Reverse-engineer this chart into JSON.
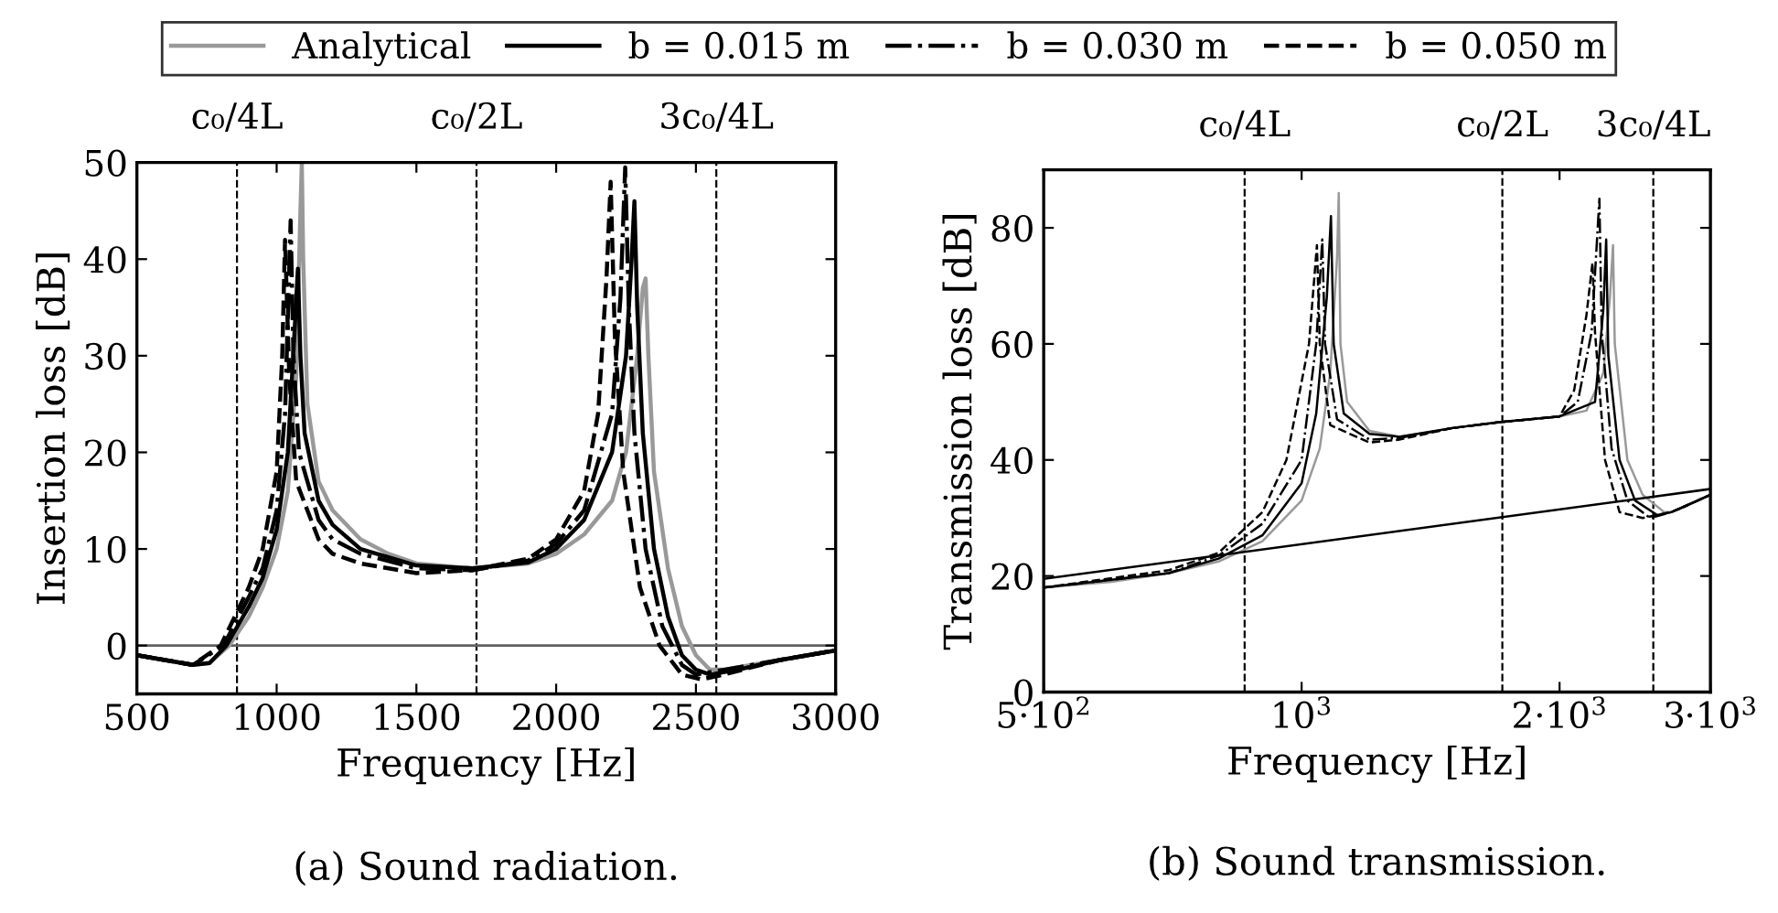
{
  "chart_data": [
    {
      "type": "line",
      "xlabel": "Frequency [Hz]",
      "ylabel": "Insertion loss [dB]",
      "xlim": [
        500,
        3000
      ],
      "xticks": [
        500,
        1000,
        1500,
        2000,
        2500,
        3000
      ],
      "ylim": [
        -5,
        50
      ],
      "yticks": [
        0,
        10,
        20,
        30,
        40,
        50
      ],
      "grid": false,
      "legend": "top",
      "annotations": [
        "(a) Sound radiation."
      ],
      "ref_lines": [
        {
          "axis": "x",
          "value": 858,
          "label": "c₀/4L",
          "color": "#000000",
          "line_style": "dashed"
        },
        {
          "axis": "x",
          "value": 1715,
          "label": "c₀/2L",
          "color": "#000000",
          "line_style": "dashed"
        },
        {
          "axis": "x",
          "value": 2573,
          "label": "3c₀/4L",
          "color": "#000000",
          "line_style": "dashed"
        },
        {
          "axis": "y",
          "value": 0,
          "color": "#606060",
          "line_style": "solid"
        }
      ],
      "series": [
        {
          "name": "Analytical",
          "color": "#999999",
          "line_style": "solid",
          "x": [
            500,
            600,
            700,
            760,
            830,
            900,
            950,
            1000,
            1040,
            1070,
            1085,
            1090,
            1095,
            1110,
            1150,
            1200,
            1300,
            1400,
            1500,
            1700,
            1900,
            2000,
            2100,
            2200,
            2250,
            2290,
            2310,
            2320,
            2330,
            2350,
            2400,
            2450,
            2500,
            2550,
            2600,
            2700,
            2800,
            3000
          ],
          "values": [
            -1,
            -1.5,
            -2,
            -1.8,
            0,
            3,
            6,
            10,
            16,
            28,
            45,
            50,
            40,
            25,
            17,
            14,
            11,
            9.5,
            8.5,
            8,
            8.5,
            9.5,
            11.5,
            15,
            20,
            30,
            37,
            38,
            30,
            18,
            8,
            2,
            -1,
            -2.5,
            -2.5,
            -2,
            -1.5,
            -0.5
          ]
        },
        {
          "name": "b = 0.015 m",
          "color": "#000000",
          "line_style": "solid",
          "x": [
            500,
            600,
            700,
            760,
            820,
            900,
            950,
            1000,
            1040,
            1065,
            1076,
            1085,
            1100,
            1150,
            1200,
            1300,
            1500,
            1700,
            1900,
            2000,
            2100,
            2200,
            2250,
            2270,
            2280,
            2290,
            2310,
            2350,
            2400,
            2450,
            2500,
            2550,
            2650,
            2800,
            3000
          ],
          "values": [
            -1,
            -1.5,
            -2,
            -1.8,
            0,
            4,
            7,
            12,
            20,
            33,
            39,
            30,
            22,
            15,
            12.5,
            10,
            8.3,
            8,
            8.6,
            10,
            13,
            20,
            30,
            40,
            46,
            35,
            22,
            10,
            3,
            -1,
            -2.5,
            -3,
            -2.5,
            -1.5,
            -0.5
          ]
        },
        {
          "name": "b = 0.030 m",
          "color": "#000000",
          "line_style": "dashdot",
          "x": [
            500,
            700,
            810,
            900,
            950,
            1000,
            1030,
            1050,
            1060,
            1080,
            1150,
            1200,
            1300,
            1500,
            1700,
            1900,
            2000,
            2100,
            2200,
            2230,
            2247,
            2260,
            2280,
            2320,
            2380,
            2450,
            2500,
            2600,
            2800,
            3000
          ],
          "values": [
            -1,
            -2,
            0,
            5,
            8,
            14,
            24,
            44,
            30,
            20,
            13,
            11,
            9.5,
            8,
            7.8,
            8.8,
            10.5,
            14,
            24,
            36,
            49.5,
            35,
            22,
            10,
            2,
            -2,
            -3,
            -2.5,
            -1.5,
            -0.5
          ]
        },
        {
          "name": "b = 0.050 m",
          "color": "#000000",
          "line_style": "dashed",
          "x": [
            500,
            700,
            800,
            900,
            950,
            1000,
            1020,
            1030,
            1045,
            1070,
            1150,
            1200,
            1300,
            1500,
            1700,
            1900,
            2000,
            2100,
            2150,
            2180,
            2195,
            2210,
            2240,
            2300,
            2370,
            2450,
            2520,
            2600,
            2800,
            3000
          ],
          "values": [
            -1,
            -2,
            0,
            6,
            10,
            18,
            30,
            42,
            28,
            17,
            11,
            9.5,
            8.5,
            7.5,
            7.8,
            9,
            11,
            16,
            24,
            38,
            48,
            32,
            18,
            6,
            0,
            -3,
            -3.5,
            -3,
            -1.5,
            -0.5
          ]
        }
      ]
    },
    {
      "type": "line",
      "xlabel": "Frequency [Hz]",
      "ylabel": "Transmission loss [dB]",
      "log": "x",
      "xlim": [
        500,
        3000
      ],
      "xticks": [
        {
          "value": 500,
          "label": "5·10$^{2}$"
        },
        {
          "value": 1000,
          "label": "10$^{3}$"
        },
        {
          "value": 2000,
          "label": "2·10$^{3}$"
        },
        {
          "value": 3000,
          "label": "3·10$^{3}$"
        }
      ],
      "ylim": [
        0,
        90
      ],
      "yticks": [
        0,
        20,
        40,
        60,
        80
      ],
      "grid": false,
      "annotations": [
        "(b) Sound transmission."
      ],
      "ref_lines": [
        {
          "axis": "x",
          "value": 858,
          "label": "c₀/4L",
          "color": "#000000",
          "line_style": "dashed"
        },
        {
          "axis": "x",
          "value": 1715,
          "label": "c₀/2L",
          "color": "#000000",
          "line_style": "dashed"
        },
        {
          "axis": "x",
          "value": 2573,
          "label": "3c₀/4L",
          "color": "#000000",
          "line_style": "dashed"
        }
      ],
      "series": [
        {
          "color": "#000000",
          "line_style": "solid",
          "x": [
            500,
            3000
          ],
          "values": [
            19.5,
            35
          ]
        },
        {
          "color": "#999999",
          "line_style": "solid",
          "x": [
            500,
            600,
            700,
            800,
            900,
            1000,
            1050,
            1080,
            1100,
            1105,
            1110,
            1130,
            1200,
            1300,
            1500,
            1700,
            2000,
            2150,
            2250,
            2290,
            2309,
            2320,
            2400,
            2500,
            2650,
            2700,
            2800,
            3000
          ],
          "values": [
            18,
            19,
            20.5,
            22.5,
            26,
            33,
            42,
            55,
            75,
            86,
            60,
            50,
            45,
            44,
            45.5,
            46.5,
            47.5,
            48.5,
            55,
            68,
            77,
            60,
            40,
            34,
            31,
            31,
            32,
            34
          ]
        },
        {
          "color": "#000000",
          "line_style": "solid",
          "x": [
            500,
            700,
            800,
            900,
            1000,
            1040,
            1070,
            1082,
            1090,
            1120,
            1200,
            1300,
            1500,
            1700,
            2000,
            2200,
            2250,
            2267,
            2280,
            2350,
            2450,
            2600,
            2700,
            2800,
            3000
          ],
          "values": [
            18,
            20.5,
            23,
            27,
            36,
            48,
            68,
            82,
            60,
            48,
            44.5,
            44,
            45.5,
            46.5,
            47.5,
            50,
            66,
            78,
            58,
            40,
            33,
            30.5,
            31,
            32,
            34
          ]
        },
        {
          "color": "#000000",
          "line_style": "dashdot",
          "x": [
            500,
            700,
            800,
            900,
            1000,
            1040,
            1057,
            1065,
            1100,
            1200,
            1300,
            1500,
            1700,
            2000,
            2100,
            2180,
            2226,
            2240,
            2300,
            2400,
            2550,
            2700,
            2800,
            3000
          ],
          "values": [
            18,
            20.5,
            23.5,
            29,
            40,
            60,
            78,
            60,
            47,
            43.5,
            43.8,
            45.5,
            46.5,
            47.5,
            50,
            62,
            85,
            62,
            42,
            33,
            30,
            31,
            32,
            34
          ]
        },
        {
          "color": "#000000",
          "line_style": "dashed",
          "x": [
            500,
            700,
            800,
            900,
            960,
            1020,
            1042,
            1050,
            1080,
            1200,
            1300,
            1500,
            1700,
            2000,
            2080,
            2150,
            2185,
            2200,
            2260,
            2350,
            2500,
            2700,
            2800,
            3000
          ],
          "values": [
            18,
            21,
            24,
            31,
            40,
            60,
            77,
            60,
            46,
            43,
            43.5,
            45.5,
            46.5,
            47.5,
            52,
            65,
            74,
            62,
            40,
            31,
            30,
            31,
            32,
            34
          ]
        }
      ]
    }
  ]
}
